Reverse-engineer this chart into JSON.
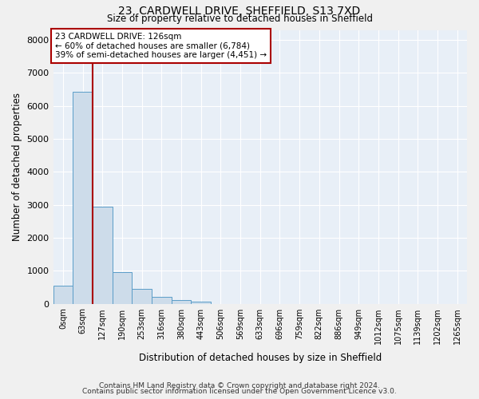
{
  "title1": "23, CARDWELL DRIVE, SHEFFIELD, S13 7XD",
  "title2": "Size of property relative to detached houses in Sheffield",
  "xlabel": "Distribution of detached houses by size in Sheffield",
  "ylabel": "Number of detached properties",
  "bar_labels": [
    "0sqm",
    "63sqm",
    "127sqm",
    "190sqm",
    "253sqm",
    "316sqm",
    "380sqm",
    "443sqm",
    "506sqm",
    "569sqm",
    "633sqm",
    "696sqm",
    "759sqm",
    "822sqm",
    "886sqm",
    "949sqm",
    "1012sqm",
    "1075sqm",
    "1139sqm",
    "1202sqm",
    "1265sqm"
  ],
  "bar_values": [
    550,
    6430,
    2930,
    960,
    440,
    200,
    100,
    50,
    0,
    0,
    0,
    0,
    0,
    0,
    0,
    0,
    0,
    0,
    0,
    0,
    0
  ],
  "bar_color": "#cddcea",
  "bar_edge_color": "#5b9dc8",
  "vline_color": "#aa0000",
  "annotation_lines": [
    "23 CARDWELL DRIVE: 126sqm",
    "← 60% of detached houses are smaller (6,784)",
    "39% of semi-detached houses are larger (4,451) →"
  ],
  "annotation_box_color": "#ffffff",
  "annotation_box_edge": "#aa0000",
  "ylim": [
    0,
    8300
  ],
  "yticks": [
    0,
    1000,
    2000,
    3000,
    4000,
    5000,
    6000,
    7000,
    8000
  ],
  "footer1": "Contains HM Land Registry data © Crown copyright and database right 2024.",
  "footer2": "Contains public sector information licensed under the Open Government Licence v3.0.",
  "fig_bg_color": "#f0f0f0",
  "plot_bg_color": "#e8eff7"
}
